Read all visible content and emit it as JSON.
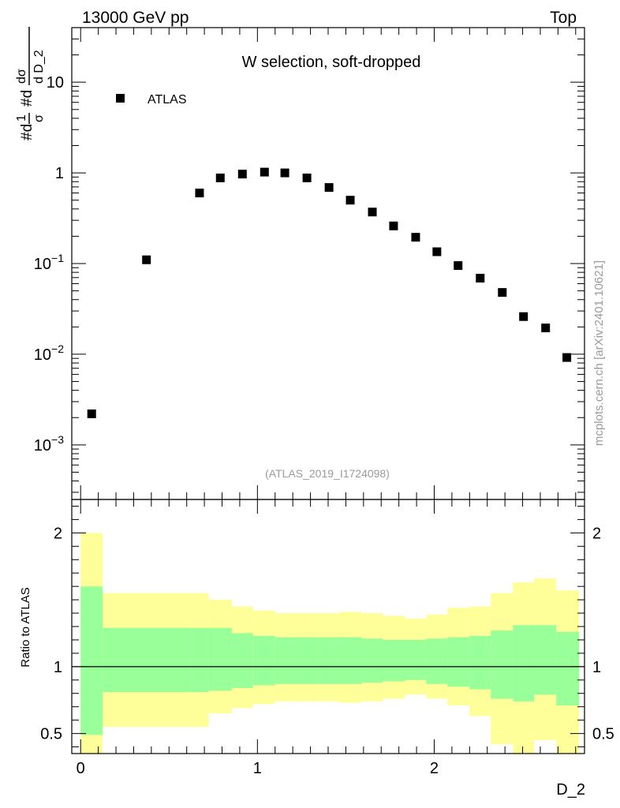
{
  "header": {
    "left": "13000 GeV pp",
    "right": "Top"
  },
  "side_label": "mcplots.cern.ch [arXiv:2401.10621]",
  "chart_data": [
    {
      "type": "scatter",
      "title": "W selection, soft-dropped",
      "watermark": "(ATLAS_2019_I1724098)",
      "ylabel": "#d¹/σ  #d dσ/d D_2",
      "yscale": "log",
      "ylim": [
        0.00025,
        40
      ],
      "xlim": [
        -0.05,
        2.85
      ],
      "y_ticks": [
        {
          "value": 0.001,
          "base": "10",
          "exp": "−3"
        },
        {
          "value": 0.01,
          "base": "10",
          "exp": "−2"
        },
        {
          "value": 0.1,
          "base": "10",
          "exp": "−1"
        },
        {
          "value": 1,
          "base": "1",
          "exp": ""
        },
        {
          "value": 10,
          "base": "10",
          "exp": ""
        }
      ],
      "legend": [
        {
          "name": "ATLAS",
          "marker": "square",
          "color": "#000000",
          "position": "top-left"
        }
      ],
      "series": [
        {
          "name": "ATLAS",
          "x": [
            0.0625,
            0.3725,
            0.6725,
            0.79,
            0.915,
            1.04,
            1.155,
            1.28,
            1.405,
            1.525,
            1.65,
            1.77,
            1.895,
            2.015,
            2.135,
            2.26,
            2.385,
            2.505,
            2.63,
            2.75
          ],
          "y": [
            0.0022,
            0.11,
            0.6,
            0.88,
            0.97,
            1.02,
            1.0,
            0.88,
            0.69,
            0.5,
            0.37,
            0.26,
            0.195,
            0.135,
            0.095,
            0.069,
            0.048,
            0.026,
            0.0195,
            0.0092
          ]
        }
      ]
    },
    {
      "type": "area",
      "ylabel": "Ratio to ATLAS",
      "xlabel": "D_2",
      "xlim": [
        -0.05,
        2.85
      ],
      "ylim": [
        0.35,
        2.25
      ],
      "x_ticks": [
        {
          "value": 0,
          "label": "0"
        },
        {
          "value": 1,
          "label": "1"
        },
        {
          "value": 2,
          "label": "2"
        }
      ],
      "y_ticks": [
        {
          "value": 0.5,
          "label": "0.5"
        },
        {
          "value": 1,
          "label": "1"
        },
        {
          "value": 2,
          "label": "2"
        }
      ],
      "reference_line": 1,
      "bins": [
        0,
        0.125,
        0.62,
        0.725,
        0.855,
        0.975,
        1.1,
        1.215,
        1.345,
        1.465,
        1.59,
        1.71,
        1.835,
        1.955,
        2.075,
        2.2,
        2.32,
        2.445,
        2.565,
        2.69,
        2.82
      ],
      "bands": [
        {
          "name": "total",
          "color": "#ffff99",
          "low": [
            0.35,
            0.55,
            0.55,
            0.65,
            0.69,
            0.72,
            0.74,
            0.74,
            0.74,
            0.73,
            0.74,
            0.76,
            0.79,
            0.76,
            0.71,
            0.63,
            0.42,
            0.35,
            0.45,
            0.35
          ],
          "high": [
            2.0,
            1.55,
            1.55,
            1.5,
            1.45,
            1.42,
            1.4,
            1.4,
            1.4,
            1.41,
            1.4,
            1.38,
            1.36,
            1.39,
            1.44,
            1.45,
            1.55,
            1.63,
            1.66,
            1.57
          ]
        },
        {
          "name": "stat",
          "color": "#99ff99",
          "low": [
            0.49,
            0.81,
            0.81,
            0.82,
            0.84,
            0.86,
            0.87,
            0.87,
            0.87,
            0.87,
            0.88,
            0.89,
            0.9,
            0.87,
            0.85,
            0.83,
            0.76,
            0.74,
            0.79,
            0.71
          ],
          "high": [
            1.6,
            1.29,
            1.29,
            1.29,
            1.25,
            1.23,
            1.22,
            1.22,
            1.22,
            1.22,
            1.21,
            1.2,
            1.2,
            1.21,
            1.22,
            1.23,
            1.27,
            1.31,
            1.31,
            1.26
          ]
        }
      ]
    }
  ]
}
